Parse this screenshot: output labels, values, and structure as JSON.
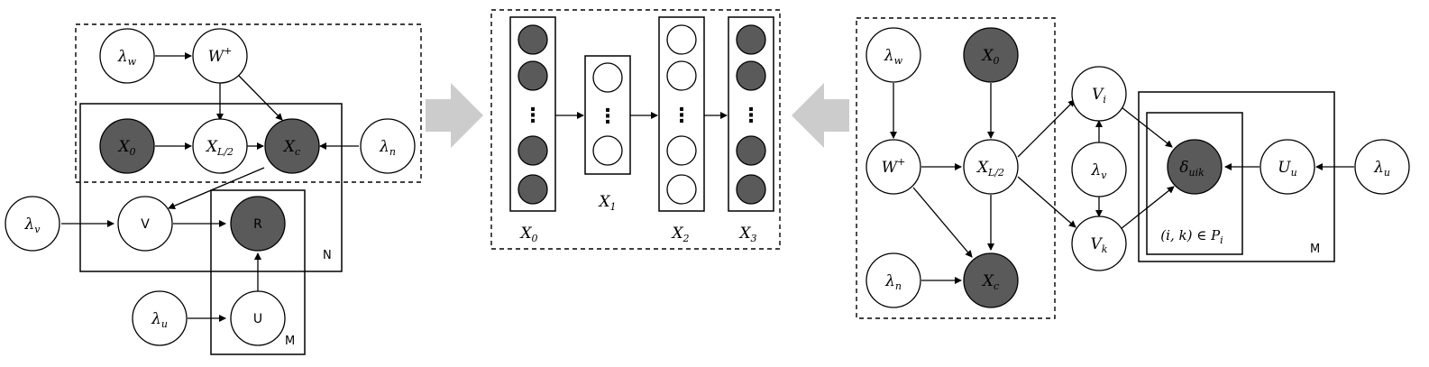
{
  "left": {
    "lambda_w": "λ",
    "lambda_w_sub": "w",
    "W": "W",
    "W_sup": "+",
    "X0": "X",
    "X0_sub": "0",
    "XL2": "X",
    "XL2_sub": "L/2",
    "Xc": "X",
    "Xc_sub": "c",
    "lambda_n": "λ",
    "lambda_n_sub": "n",
    "lambda_v": "λ",
    "lambda_v_sub": "v",
    "V": "V",
    "R": "R",
    "lambda_u": "λ",
    "lambda_u_sub": "u",
    "U": "U",
    "plate_N": "N",
    "plate_M": "M"
  },
  "middle": {
    "x0": "X",
    "x0_sub": "0",
    "x1": "X",
    "x1_sub": "1",
    "x2": "X",
    "x2_sub": "2",
    "x3": "X",
    "x3_sub": "3",
    "dots": "⋮"
  },
  "right": {
    "lambda_w": "λ",
    "lambda_w_sub": "w",
    "X0": "X",
    "X0_sub": "0",
    "W": "W",
    "W_sup": "+",
    "XL2": "X",
    "XL2_sub": "L/2",
    "lambda_n": "λ",
    "lambda_n_sub": "n",
    "Xc": "X",
    "Xc_sub": "c",
    "Vi": "V",
    "Vi_sub": "i",
    "lambda_v": "λ",
    "lambda_v_sub": "v",
    "Vk": "V",
    "Vk_sub": "k",
    "delta": "δ",
    "delta_sub": "uik",
    "pair": "(i, k) ∈ P",
    "pair_sub": "i",
    "Uu": "U",
    "Uu_sub": "u",
    "lambda_u": "λ",
    "lambda_u_sub": "u",
    "plate_M": "M"
  },
  "colors": {
    "dark_node": "#5a5a5a",
    "arrow_gray": "#cccccc"
  }
}
